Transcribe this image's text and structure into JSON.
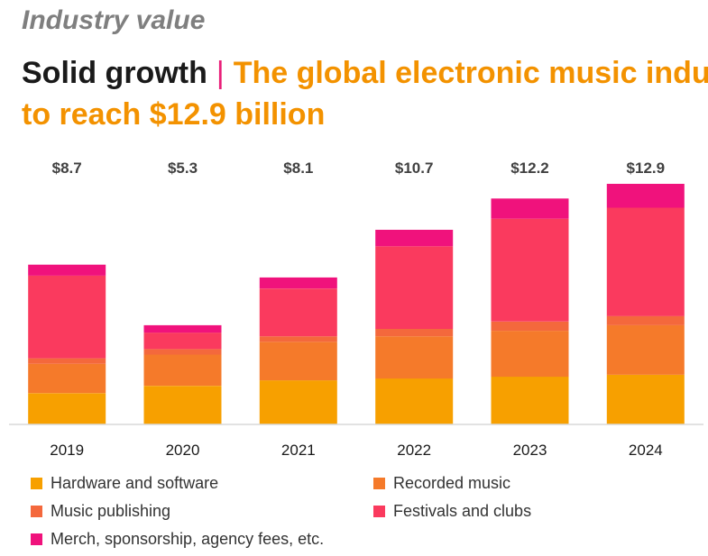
{
  "header": {
    "kicker": "Industry value",
    "headline_lead": "Solid growth",
    "separator": "|",
    "headline_sub_line1": "The global electronic music indu",
    "headline_sub_line2": "to reach $12.9 billion"
  },
  "colors": {
    "hardware": "#f7a000",
    "recorded": "#f57a2a",
    "publishing": "#f4683c",
    "festivals": "#fa3a5e",
    "merch": "#f0127c",
    "axis": "#d9d9d9",
    "total_label": "#404040"
  },
  "chart_data": {
    "type": "bar",
    "stacked": true,
    "categories": [
      "2019",
      "2020",
      "2021",
      "2022",
      "2023",
      "2024"
    ],
    "totals": [
      "$8.7",
      "$5.3",
      "$8.1",
      "$10.7",
      "$12.2",
      "$12.9"
    ],
    "series": [
      {
        "name": "Hardware and software",
        "color_key": "hardware",
        "values": [
          1.7,
          2.1,
          2.4,
          2.5,
          2.6,
          2.7
        ]
      },
      {
        "name": "Recorded music",
        "color_key": "recorded",
        "values": [
          1.6,
          1.7,
          2.1,
          2.3,
          2.5,
          2.7
        ]
      },
      {
        "name": "Music publishing",
        "color_key": "publishing",
        "values": [
          0.3,
          0.3,
          0.3,
          0.4,
          0.5,
          0.5
        ]
      },
      {
        "name": "Festivals and clubs",
        "color_key": "festivals",
        "values": [
          4.5,
          0.9,
          2.6,
          4.5,
          5.6,
          5.9
        ]
      },
      {
        "name": "Merch, sponsorship, agency fees, etc.",
        "color_key": "merch",
        "values": [
          0.6,
          0.4,
          0.6,
          0.9,
          1.1,
          1.3
        ]
      }
    ],
    "ylim": [
      0,
      13.1
    ],
    "legend_position": "bottom",
    "grid": false
  }
}
